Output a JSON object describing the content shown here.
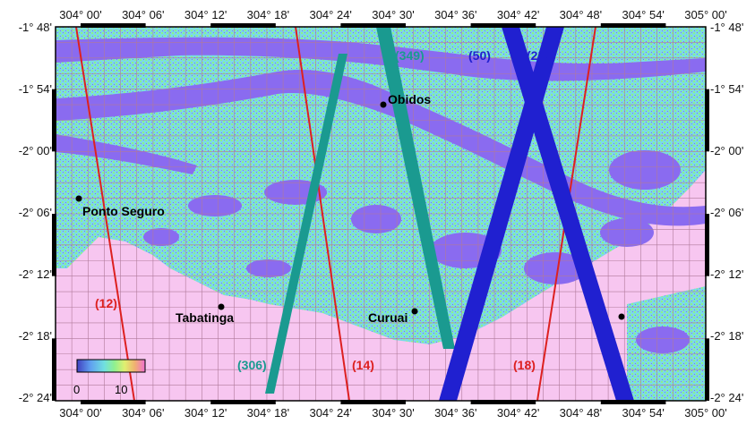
{
  "colors": {
    "background": "#f7c6f0",
    "water": "#8a6bf0",
    "vegetation_low": "#7adbe6",
    "vegetation_high": "#8cf08c",
    "grid": "#b07a9a",
    "frame": "#000000",
    "track_red": "#dd2020",
    "track_teal": "#1a9a90",
    "track_blue": "#2020d0"
  },
  "axes": {
    "top_labels": [
      "304° 00'",
      "304° 06'",
      "304° 12'",
      "304° 18'",
      "304° 24'",
      "304° 30'",
      "304° 36'",
      "304° 42'",
      "304° 48'",
      "304° 54'",
      "305° 00'"
    ],
    "bottom_labels": [
      "304° 00'",
      "304° 06'",
      "304° 12'",
      "304° 18'",
      "304° 24'",
      "304° 30'",
      "304° 36'",
      "304° 42'",
      "304° 48'",
      "304° 54'",
      "305° 00'"
    ],
    "left_labels": [
      "-1° 48'",
      "-1° 54'",
      "-2° 00'",
      "-2° 06'",
      "-2° 12'",
      "-2° 18'",
      "-2° 24'"
    ],
    "right_labels": [
      "-1° 48'",
      "-1° 54'",
      "-2° 00'",
      "-2° 06'",
      "-2° 12'",
      "-2° 18'",
      "-2° 24'"
    ]
  },
  "places": [
    {
      "name": "Obidos",
      "id": "obidos"
    },
    {
      "name": "Ponto Seguro",
      "id": "ponto-seguro"
    },
    {
      "name": "Tabatinga",
      "id": "tabatinga"
    },
    {
      "name": "Curuai",
      "id": "curuai"
    },
    {
      "name": "",
      "id": "unnamed-town"
    }
  ],
  "tracks": [
    {
      "label": "(12)",
      "color": "red"
    },
    {
      "label": "(14)",
      "color": "red"
    },
    {
      "label": "(18)",
      "color": "red"
    },
    {
      "label": "(306)",
      "color": "teal"
    },
    {
      "label": "(349)",
      "color": "teal"
    },
    {
      "label": "(50)",
      "color": "blue"
    },
    {
      "label": "(215)",
      "color": "blue"
    }
  ],
  "colorbar": {
    "min_label": "0",
    "max_label": "10",
    "stops": [
      "#4040c0",
      "#60a0f0",
      "#70e0e0",
      "#90f090",
      "#e0f070",
      "#f0b070",
      "#f070d0"
    ]
  }
}
